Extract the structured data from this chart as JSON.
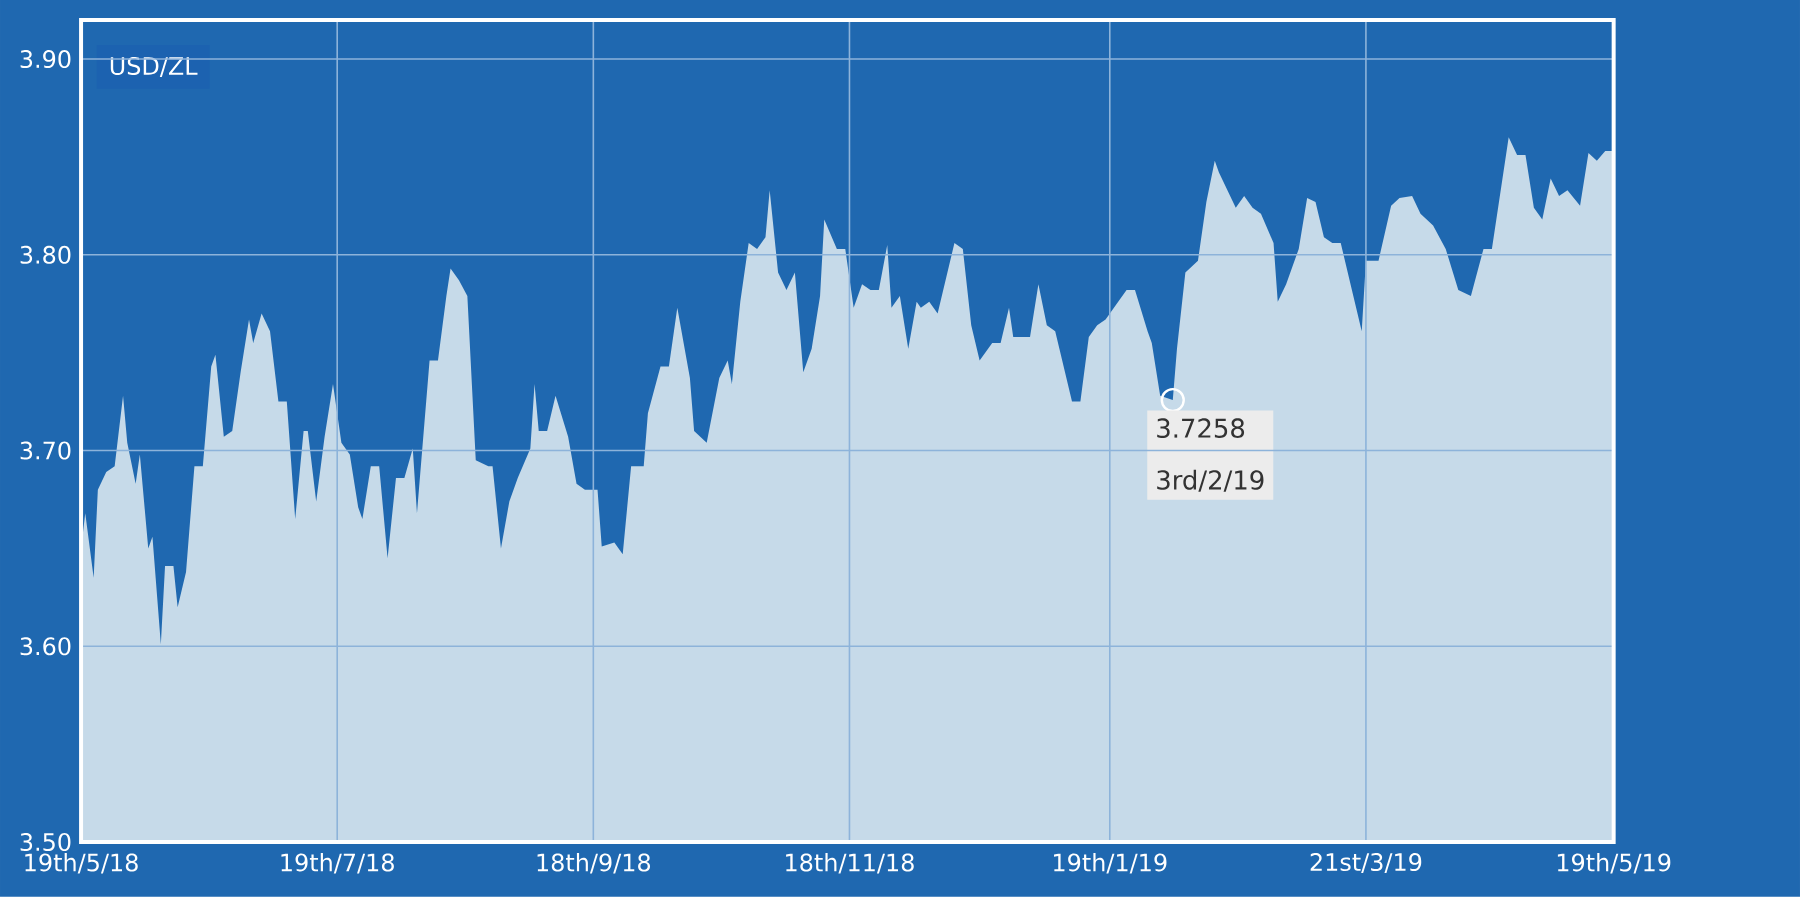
{
  "chart_data": {
    "type": "area",
    "title": "USD/ZL",
    "x": [
      "2018-05-19",
      "2018-05-20",
      "2018-05-22",
      "2018-05-23",
      "2018-05-25",
      "2018-05-27",
      "2018-05-29",
      "2018-05-30",
      "2018-06-01",
      "2018-06-02",
      "2018-06-04",
      "2018-06-05",
      "2018-06-07",
      "2018-06-08",
      "2018-06-10",
      "2018-06-11",
      "2018-06-13",
      "2018-06-15",
      "2018-06-17",
      "2018-06-19",
      "2018-06-20",
      "2018-06-22",
      "2018-06-24",
      "2018-06-26",
      "2018-06-28",
      "2018-06-29",
      "2018-07-01",
      "2018-07-03",
      "2018-07-05",
      "2018-07-07",
      "2018-07-09",
      "2018-07-11",
      "2018-07-12",
      "2018-07-14",
      "2018-07-16",
      "2018-07-18",
      "2018-07-20",
      "2018-07-22",
      "2018-07-24",
      "2018-07-25",
      "2018-07-27",
      "2018-07-29",
      "2018-07-31",
      "2018-08-02",
      "2018-08-04",
      "2018-08-06",
      "2018-08-07",
      "2018-08-10",
      "2018-08-12",
      "2018-08-14",
      "2018-08-15",
      "2018-08-17",
      "2018-08-19",
      "2018-08-21",
      "2018-08-24",
      "2018-08-25",
      "2018-08-27",
      "2018-08-29",
      "2018-08-31",
      "2018-09-03",
      "2018-09-04",
      "2018-09-05",
      "2018-09-07",
      "2018-09-09",
      "2018-09-12",
      "2018-09-14",
      "2018-09-16",
      "2018-09-19",
      "2018-09-20",
      "2018-09-23",
      "2018-09-25",
      "2018-09-27",
      "2018-09-30",
      "2018-10-01",
      "2018-10-04",
      "2018-10-06",
      "2018-10-08",
      "2018-10-11",
      "2018-10-12",
      "2018-10-15",
      "2018-10-18",
      "2018-10-20",
      "2018-10-21",
      "2018-10-23",
      "2018-10-25",
      "2018-10-27",
      "2018-10-29",
      "2018-10-30",
      "2018-11-01",
      "2018-11-03",
      "2018-11-05",
      "2018-11-07",
      "2018-11-09",
      "2018-11-11",
      "2018-11-12",
      "2018-11-15",
      "2018-11-17",
      "2018-11-19",
      "2018-11-21",
      "2018-11-23",
      "2018-11-25",
      "2018-11-27",
      "2018-11-28",
      "2018-11-30",
      "2018-12-02",
      "2018-12-04",
      "2018-12-05",
      "2018-12-07",
      "2018-12-09",
      "2018-12-11",
      "2018-12-13",
      "2018-12-15",
      "2018-12-17",
      "2018-12-19",
      "2018-12-22",
      "2018-12-24",
      "2018-12-26",
      "2018-12-27",
      "2018-12-30",
      "2018-12-31",
      "2019-01-02",
      "2019-01-04",
      "2019-01-06",
      "2019-01-07",
      "2019-01-10",
      "2019-01-12",
      "2019-01-14",
      "2019-01-16",
      "2019-01-18",
      "2019-01-21",
      "2019-01-23",
      "2019-01-25",
      "2019-01-28",
      "2019-01-29",
      "2019-01-31",
      "2019-02-03",
      "2019-02-04",
      "2019-02-06",
      "2019-02-09",
      "2019-02-11",
      "2019-02-13",
      "2019-02-14",
      "2019-02-16",
      "2019-02-18",
      "2019-02-20",
      "2019-02-22",
      "2019-02-24",
      "2019-02-27",
      "2019-02-28",
      "2019-03-02",
      "2019-03-05",
      "2019-03-07",
      "2019-03-09",
      "2019-03-11",
      "2019-03-13",
      "2019-03-15",
      "2019-03-18",
      "2019-03-20",
      "2019-03-21",
      "2019-03-24",
      "2019-03-27",
      "2019-03-29",
      "2019-04-01",
      "2019-04-03",
      "2019-04-06",
      "2019-04-09",
      "2019-04-12",
      "2019-04-15",
      "2019-04-18",
      "2019-04-20",
      "2019-04-24",
      "2019-04-26",
      "2019-04-28",
      "2019-04-30",
      "2019-05-02",
      "2019-05-04",
      "2019-05-06",
      "2019-05-08",
      "2019-05-11",
      "2019-05-13",
      "2019-05-15",
      "2019-05-17",
      "2019-05-19"
    ],
    "values": [
      3.65,
      3.668,
      3.635,
      3.68,
      3.689,
      3.692,
      3.728,
      3.704,
      3.683,
      3.698,
      3.65,
      3.656,
      3.601,
      3.641,
      3.641,
      3.62,
      3.638,
      3.692,
      3.692,
      3.743,
      3.749,
      3.707,
      3.71,
      3.74,
      3.767,
      3.755,
      3.77,
      3.761,
      3.725,
      3.725,
      3.665,
      3.71,
      3.71,
      3.674,
      3.707,
      3.734,
      3.704,
      3.698,
      3.671,
      3.665,
      3.692,
      3.692,
      3.645,
      3.686,
      3.686,
      3.701,
      3.668,
      3.746,
      3.746,
      3.779,
      3.793,
      3.787,
      3.779,
      3.695,
      3.692,
      3.692,
      3.65,
      3.674,
      3.686,
      3.701,
      3.734,
      3.71,
      3.71,
      3.728,
      3.707,
      3.683,
      3.68,
      3.68,
      3.651,
      3.653,
      3.647,
      3.692,
      3.692,
      3.719,
      3.743,
      3.743,
      3.773,
      3.737,
      3.71,
      3.704,
      3.737,
      3.746,
      3.734,
      3.776,
      3.806,
      3.803,
      3.809,
      3.833,
      3.791,
      3.782,
      3.791,
      3.74,
      3.752,
      3.779,
      3.818,
      3.803,
      3.803,
      3.773,
      3.785,
      3.782,
      3.782,
      3.805,
      3.773,
      3.779,
      3.752,
      3.776,
      3.773,
      3.776,
      3.77,
      3.788,
      3.806,
      3.803,
      3.764,
      3.746,
      3.755,
      3.755,
      3.773,
      3.758,
      3.758,
      3.758,
      3.785,
      3.764,
      3.761,
      3.752,
      3.725,
      3.725,
      3.758,
      3.764,
      3.767,
      3.776,
      3.782,
      3.782,
      3.761,
      3.755,
      3.728,
      3.7258,
      3.752,
      3.791,
      3.797,
      3.827,
      3.848,
      3.842,
      3.833,
      3.824,
      3.83,
      3.824,
      3.821,
      3.806,
      3.776,
      3.785,
      3.803,
      3.829,
      3.827,
      3.809,
      3.806,
      3.806,
      3.779,
      3.761,
      3.797,
      3.797,
      3.825,
      3.829,
      3.83,
      3.821,
      3.815,
      3.803,
      3.782,
      3.779,
      3.803,
      3.803,
      3.86,
      3.851,
      3.851,
      3.824,
      3.818,
      3.839,
      3.83,
      3.833,
      3.825,
      3.852,
      3.848,
      3.853,
      3.853
    ],
    "color": "#c6dae9",
    "xlim": [
      "2018-05-19",
      "2019-05-19"
    ],
    "xticks": [
      {
        "value": "2018-05-19",
        "label": "19th/5/18"
      },
      {
        "value": "2018-07-19",
        "label": "19th/7/18"
      },
      {
        "value": "2018-09-18",
        "label": "18th/9/18"
      },
      {
        "value": "2018-11-18",
        "label": "18th/11/18"
      },
      {
        "value": "2019-01-19",
        "label": "19th/1/19"
      },
      {
        "value": "2019-03-21",
        "label": "21st/3/19"
      },
      {
        "value": "2019-05-19",
        "label": "19th/5/19"
      }
    ],
    "ylim": [
      3.5,
      3.92
    ],
    "yticks": [
      {
        "value": 3.5,
        "label": "3.50"
      },
      {
        "value": 3.6,
        "label": "3.60"
      },
      {
        "value": 3.7,
        "label": "3.70"
      },
      {
        "value": 3.8,
        "label": "3.80"
      },
      {
        "value": 3.9,
        "label": "3.90"
      }
    ],
    "grid": true,
    "annotations": [
      {
        "text": "3.7258",
        "x": "2019-02-03",
        "y": 3.7258
      },
      {
        "text": "3rd/2/19",
        "x": "2019-02-03",
        "y": 3.7258
      }
    ]
  }
}
